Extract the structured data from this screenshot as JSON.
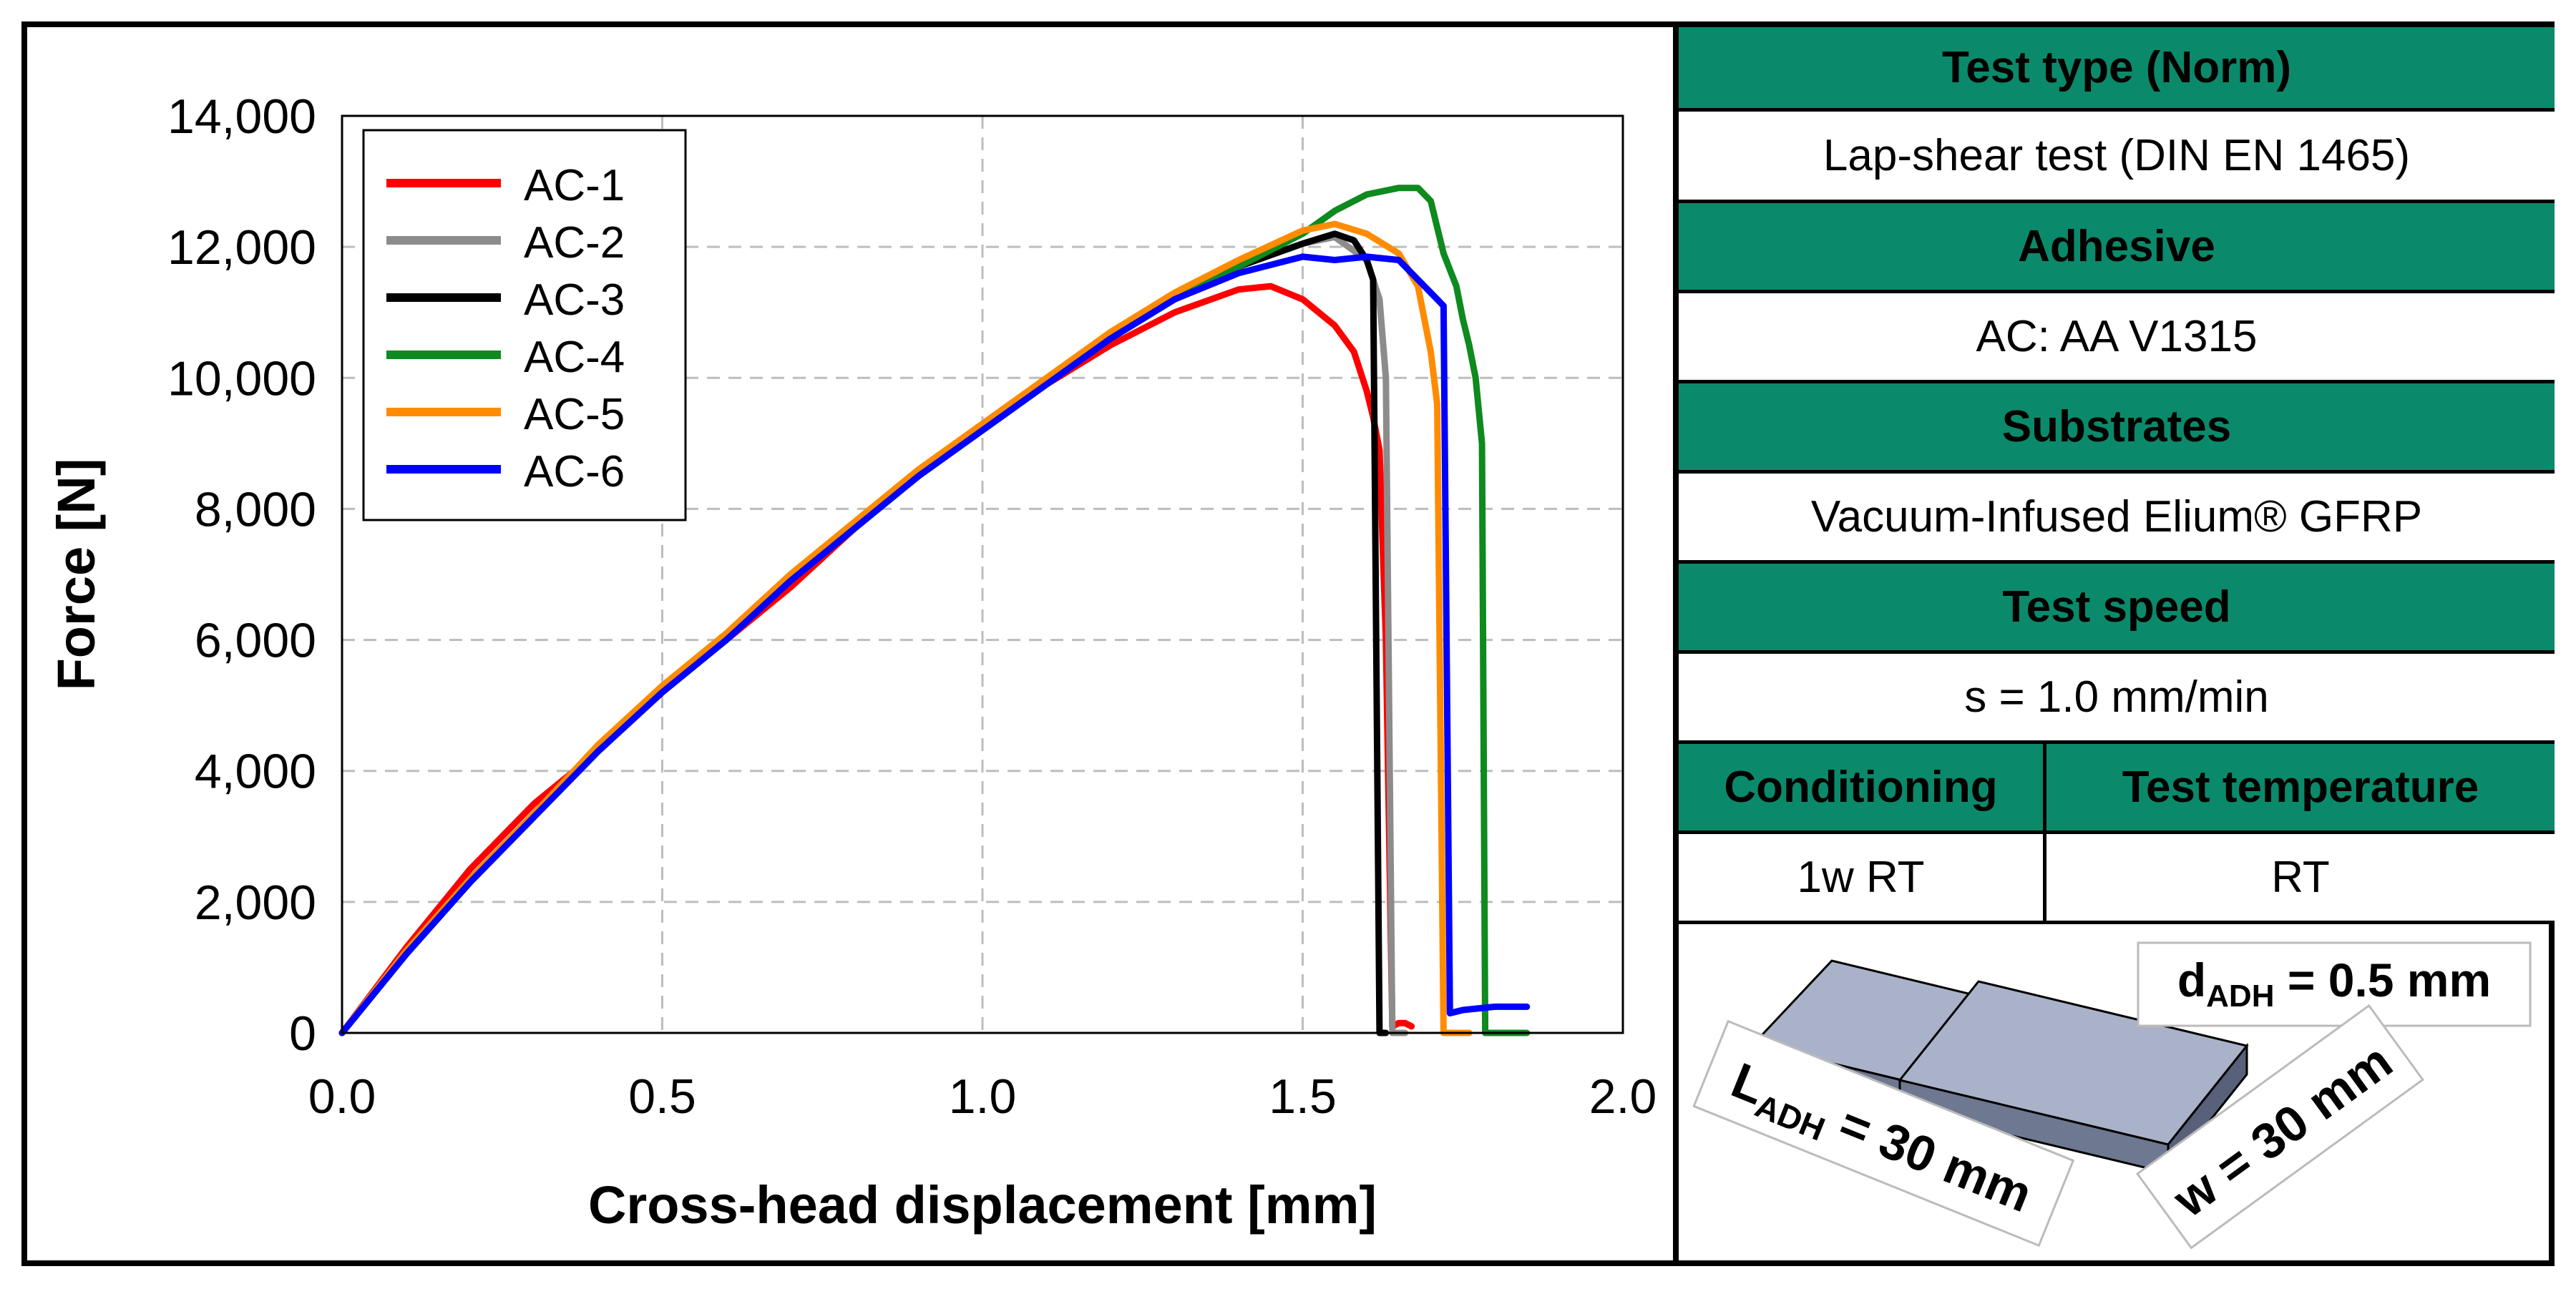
{
  "chart_data": {
    "type": "line",
    "xlabel": "Cross-head displacement [mm]",
    "ylabel": "Force [N]",
    "xlim": [
      0,
      2.0
    ],
    "ylim": [
      0,
      14000
    ],
    "xticks": [
      0.0,
      0.5,
      1.0,
      1.5,
      2.0
    ],
    "xtick_labels": [
      "0.0",
      "0.5",
      "1.0",
      "1.5",
      "2.0"
    ],
    "yticks": [
      0,
      2000,
      4000,
      6000,
      8000,
      10000,
      12000,
      14000
    ],
    "ytick_labels": [
      "0",
      "2,000",
      "4,000",
      "6,000",
      "8,000",
      "10,000",
      "12,000",
      "14,000"
    ],
    "grid": true,
    "legend_position": "top-left",
    "series": [
      {
        "name": "AC-1",
        "color": "#ff0000",
        "x": [
          0.0,
          0.1,
          0.2,
          0.3,
          0.4,
          0.5,
          0.6,
          0.7,
          0.8,
          0.9,
          1.0,
          1.1,
          1.2,
          1.3,
          1.4,
          1.45,
          1.5,
          1.55,
          1.58,
          1.6,
          1.61,
          1.62,
          1.63,
          1.64,
          1.65,
          1.66,
          1.67
        ],
        "y": [
          0,
          1300,
          2500,
          3500,
          4300,
          5200,
          6000,
          6800,
          7700,
          8500,
          9200,
          9900,
          10500,
          11000,
          11350,
          11400,
          11200,
          10800,
          10400,
          9800,
          9400,
          8900,
          6000,
          100,
          150,
          150,
          100
        ]
      },
      {
        "name": "AC-2",
        "color": "#8c8c8c",
        "x": [
          0.0,
          0.1,
          0.2,
          0.3,
          0.4,
          0.5,
          0.6,
          0.7,
          0.8,
          0.9,
          1.0,
          1.1,
          1.2,
          1.3,
          1.4,
          1.5,
          1.55,
          1.6,
          1.62,
          1.63,
          1.64,
          1.66
        ],
        "y": [
          0,
          1200,
          2300,
          3300,
          4300,
          5200,
          6000,
          6900,
          7700,
          8500,
          9200,
          9900,
          10600,
          11200,
          11700,
          12050,
          12150,
          11800,
          11200,
          10000,
          0,
          0
        ]
      },
      {
        "name": "AC-3",
        "color": "#000000",
        "x": [
          0.0,
          0.1,
          0.2,
          0.3,
          0.4,
          0.5,
          0.6,
          0.7,
          0.8,
          0.9,
          1.0,
          1.1,
          1.2,
          1.3,
          1.4,
          1.5,
          1.55,
          1.58,
          1.6,
          1.61,
          1.62,
          1.63
        ],
        "y": [
          0,
          1200,
          2300,
          3300,
          4300,
          5200,
          6000,
          6900,
          7700,
          8500,
          9200,
          9900,
          10600,
          11200,
          11700,
          12050,
          12200,
          12100,
          11800,
          11500,
          0,
          0
        ]
      },
      {
        "name": "AC-4",
        "color": "#0e8a1e",
        "x": [
          0.0,
          0.1,
          0.2,
          0.3,
          0.4,
          0.5,
          0.6,
          0.7,
          0.8,
          0.9,
          1.0,
          1.1,
          1.2,
          1.3,
          1.4,
          1.5,
          1.55,
          1.6,
          1.65,
          1.68,
          1.7,
          1.72,
          1.74,
          1.75,
          1.76,
          1.77,
          1.78,
          1.785,
          1.8,
          1.85
        ],
        "y": [
          0,
          1200,
          2300,
          3300,
          4300,
          5200,
          6000,
          6900,
          7700,
          8500,
          9200,
          9900,
          10600,
          11200,
          11700,
          12200,
          12550,
          12800,
          12900,
          12900,
          12700,
          11900,
          11400,
          10900,
          10500,
          10000,
          9000,
          0,
          0,
          0
        ]
      },
      {
        "name": "AC-5",
        "color": "#ff8c00",
        "x": [
          0.0,
          0.1,
          0.2,
          0.3,
          0.4,
          0.5,
          0.6,
          0.7,
          0.8,
          0.9,
          1.0,
          1.1,
          1.2,
          1.3,
          1.4,
          1.5,
          1.55,
          1.6,
          1.65,
          1.68,
          1.7,
          1.71,
          1.72,
          1.74,
          1.76
        ],
        "y": [
          0,
          1250,
          2350,
          3350,
          4400,
          5300,
          6100,
          7000,
          7800,
          8600,
          9300,
          10000,
          10700,
          11300,
          11800,
          12250,
          12350,
          12200,
          11900,
          11400,
          10400,
          9600,
          0,
          0,
          0
        ]
      },
      {
        "name": "AC-6",
        "color": "#0000ff",
        "x": [
          0.0,
          0.1,
          0.2,
          0.3,
          0.4,
          0.5,
          0.6,
          0.7,
          0.8,
          0.9,
          1.0,
          1.1,
          1.2,
          1.3,
          1.4,
          1.5,
          1.55,
          1.6,
          1.65,
          1.68,
          1.7,
          1.71,
          1.72,
          1.73,
          1.75,
          1.8,
          1.85
        ],
        "y": [
          0,
          1200,
          2300,
          3300,
          4300,
          5200,
          6000,
          6900,
          7700,
          8500,
          9200,
          9900,
          10600,
          11200,
          11600,
          11850,
          11800,
          11850,
          11800,
          11500,
          11300,
          11200,
          11100,
          300,
          350,
          400,
          400
        ]
      }
    ]
  },
  "info_table": {
    "test_type_header": "Test type (Norm)",
    "test_type_value": "Lap-shear test (DIN EN 1465)",
    "adhesive_header": "Adhesive",
    "adhesive_value": "AC: AA V1315",
    "substrates_header": "Substrates",
    "substrates_value": "Vacuum-Infused Elium® GFRP",
    "test_speed_header": "Test speed",
    "test_speed_value": "s = 1.0 mm/min",
    "conditioning_header": "Conditioning",
    "conditioning_value": "1w RT",
    "test_temperature_header": "Test temperature",
    "test_temperature_value": "RT"
  },
  "specimen": {
    "thickness_symbol": "d",
    "thickness_subscript": "ADH",
    "thickness_value": " = 0.5 mm",
    "length_symbol": "L",
    "length_subscript": "ADH",
    "length_value": " = 30 mm",
    "width_label": "w = 30 mm",
    "colors": {
      "block_top": "#a9b2c8",
      "block_front": "#6f7891",
      "block_side": "#58607a"
    }
  },
  "colors": {
    "header_green": "#0b8a6b",
    "grid": "#bdbdbd"
  }
}
